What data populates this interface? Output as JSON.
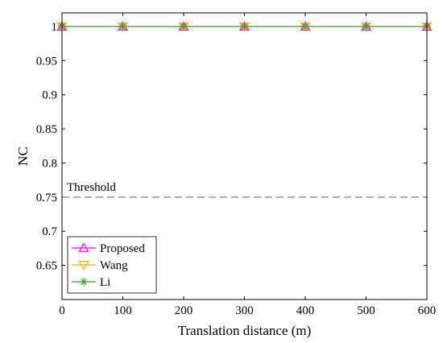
{
  "chart_data": {
    "type": "line",
    "xlabel": "Translation distance (m)",
    "ylabel": "NC",
    "xlim": [
      0,
      600
    ],
    "ylim": [
      0.6,
      1.02
    ],
    "xticks": [
      0,
      100,
      200,
      300,
      400,
      500,
      600
    ],
    "yticks": [
      0.65,
      0.7,
      0.75,
      0.8,
      0.85,
      0.9,
      0.95,
      1
    ],
    "ytick_labels": [
      "0.65",
      "0.7",
      "0.75",
      "0.8",
      "0.85",
      "0.9",
      "0.95",
      "1"
    ],
    "grid": false,
    "legend_position": "bottom-left",
    "x": [
      0,
      100,
      200,
      300,
      400,
      500,
      600
    ],
    "series": [
      {
        "name": "Proposed",
        "values": [
          1,
          1,
          1,
          1,
          1,
          1,
          1
        ],
        "color": "#ff00ff",
        "marker": "triangle-up"
      },
      {
        "name": "Wang",
        "values": [
          1,
          1,
          1,
          1,
          1,
          1,
          1
        ],
        "color": "#ffb000",
        "marker": "triangle-down"
      },
      {
        "name": "Li",
        "values": [
          1,
          1,
          1,
          1,
          1,
          1,
          1
        ],
        "color": "#2ca02c",
        "marker": "asterisk"
      }
    ],
    "threshold": {
      "label": "Threshold",
      "value": 0.75,
      "color": "#808080",
      "style": "dashed"
    }
  }
}
